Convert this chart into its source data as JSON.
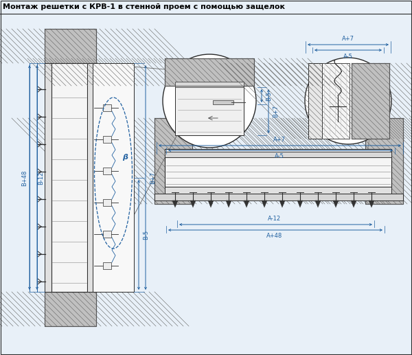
{
  "title": "Монтаж решетки с КРВ-1 в стенной проем с помощью защелок",
  "bg_color": "#e8f0f8",
  "line_color": "#2a2a2a",
  "dim_color": "#2060a0",
  "hatch_bg": "#c0c0c0",
  "grille_bg": "#f0f0f0",
  "white": "#ffffff",
  "figsize": [
    6.0,
    5.17
  ],
  "dpi": 100,
  "labels": {
    "B_plus48": "B+48",
    "B_minus12": "B-12",
    "B_minus5": "B-5",
    "B_plus7": "B+7",
    "A_plus7": "A+7",
    "A_minus5": "A-5",
    "A_minus12": "A-12",
    "A_plus48": "A+48",
    "beta": "β"
  }
}
